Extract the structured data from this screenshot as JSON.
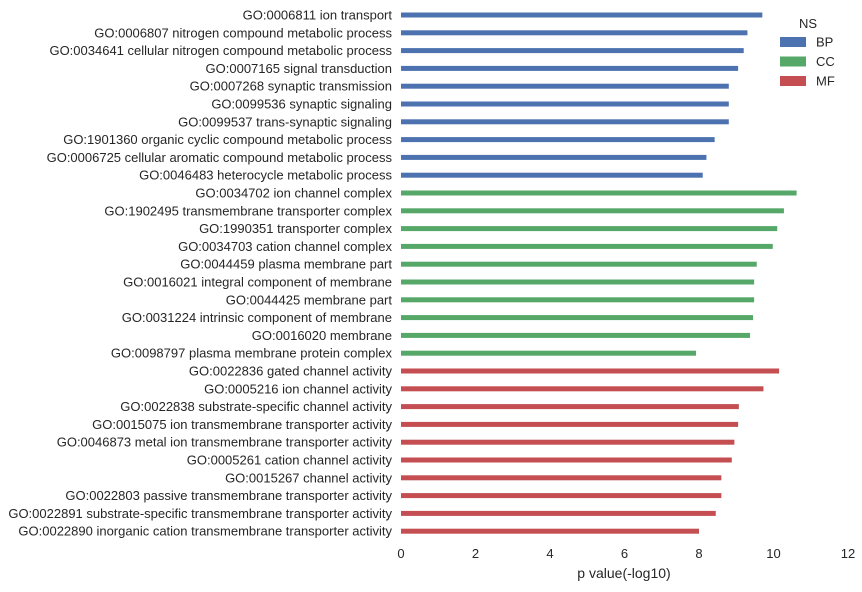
{
  "chart_data": {
    "type": "bar",
    "orientation": "horizontal",
    "xlabel": "p value(-log10)",
    "ylabel": "",
    "xlim": [
      0,
      12
    ],
    "xticks": [
      0,
      2,
      4,
      6,
      8,
      10,
      12
    ],
    "grid": false,
    "legend": {
      "title": "NS",
      "placement": "top-right",
      "entries": [
        {
          "name": "BP",
          "color": "#4c72b0"
        },
        {
          "name": "CC",
          "color": "#55a868"
        },
        {
          "name": "MF",
          "color": "#c44e52"
        }
      ]
    },
    "categories": [
      {
        "label": "GO:0006811 ion transport",
        "value": 9.7,
        "ns": "BP"
      },
      {
        "label": "GO:0006807 nitrogen compound metabolic process",
        "value": 9.3,
        "ns": "BP"
      },
      {
        "label": "GO:0034641 cellular nitrogen compound metabolic process",
        "value": 9.2,
        "ns": "BP"
      },
      {
        "label": "GO:0007165 signal transduction",
        "value": 9.05,
        "ns": "BP"
      },
      {
        "label": "GO:0007268 synaptic transmission",
        "value": 8.8,
        "ns": "BP"
      },
      {
        "label": "GO:0099536 synaptic signaling",
        "value": 8.8,
        "ns": "BP"
      },
      {
        "label": "GO:0099537 trans-synaptic signaling",
        "value": 8.8,
        "ns": "BP"
      },
      {
        "label": "GO:1901360 organic cyclic compound metabolic process",
        "value": 8.42,
        "ns": "BP"
      },
      {
        "label": "GO:0006725 cellular aromatic compound metabolic process",
        "value": 8.2,
        "ns": "BP"
      },
      {
        "label": "GO:0046483 heterocycle metabolic process",
        "value": 8.1,
        "ns": "BP"
      },
      {
        "label": "GO:0034702 ion channel complex",
        "value": 10.62,
        "ns": "CC"
      },
      {
        "label": "GO:1902495 transmembrane transporter complex",
        "value": 10.28,
        "ns": "CC"
      },
      {
        "label": "GO:1990351 transporter complex",
        "value": 10.1,
        "ns": "CC"
      },
      {
        "label": "GO:0034703 cation channel complex",
        "value": 9.98,
        "ns": "CC"
      },
      {
        "label": "GO:0044459 plasma membrane part",
        "value": 9.55,
        "ns": "CC"
      },
      {
        "label": "GO:0016021 integral component of membrane",
        "value": 9.48,
        "ns": "CC"
      },
      {
        "label": "GO:0044425 membrane part",
        "value": 9.48,
        "ns": "CC"
      },
      {
        "label": "GO:0031224 intrinsic component of membrane",
        "value": 9.45,
        "ns": "CC"
      },
      {
        "label": "GO:0016020 membrane",
        "value": 9.37,
        "ns": "CC"
      },
      {
        "label": "GO:0098797 plasma membrane protein complex",
        "value": 7.92,
        "ns": "CC"
      },
      {
        "label": "GO:0022836 gated channel activity",
        "value": 10.15,
        "ns": "MF"
      },
      {
        "label": "GO:0005216 ion channel activity",
        "value": 9.73,
        "ns": "MF"
      },
      {
        "label": "GO:0022838 substrate-specific channel activity",
        "value": 9.07,
        "ns": "MF"
      },
      {
        "label": "GO:0015075 ion transmembrane transporter activity",
        "value": 9.05,
        "ns": "MF"
      },
      {
        "label": "GO:0046873 metal ion transmembrane transporter activity",
        "value": 8.95,
        "ns": "MF"
      },
      {
        "label": "GO:0005261 cation channel activity",
        "value": 8.88,
        "ns": "MF"
      },
      {
        "label": "GO:0015267 channel activity",
        "value": 8.6,
        "ns": "MF"
      },
      {
        "label": "GO:0022803 passive transmembrane transporter activity",
        "value": 8.6,
        "ns": "MF"
      },
      {
        "label": "GO:0022891 substrate-specific transmembrane transporter activity",
        "value": 8.45,
        "ns": "MF"
      },
      {
        "label": "GO:0022890 inorganic cation transmembrane transporter activity",
        "value": 8.0,
        "ns": "MF"
      }
    ]
  }
}
